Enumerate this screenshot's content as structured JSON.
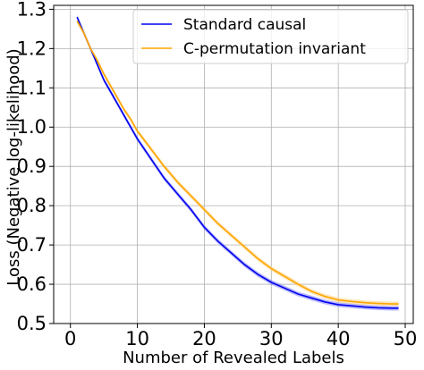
{
  "chart_data": {
    "type": "line",
    "title": "",
    "xlabel": "Number of Revealed Labels",
    "ylabel": "Loss (Negative log-likelihood)",
    "xlim": [
      -2.5,
      51.2
    ],
    "ylim": [
      0.5,
      1.31
    ],
    "xticks": [
      0,
      10,
      20,
      30,
      40,
      50
    ],
    "yticks": [
      0.5,
      0.6,
      0.7,
      0.8,
      0.9,
      1.0,
      1.1,
      1.2,
      1.3
    ],
    "xtick_labels": [
      "0",
      "10",
      "20",
      "30",
      "40",
      "50"
    ],
    "ytick_labels": [
      "0.5",
      "0.6",
      "0.7",
      "0.8",
      "0.9",
      "1.0",
      "1.1",
      "1.2",
      "1.3"
    ],
    "grid": true,
    "legend_position": "top-right",
    "series": [
      {
        "name": "Standard causal",
        "color": "#0000ee",
        "band_color": "#8080ff",
        "x": [
          1,
          2,
          3,
          4,
          5,
          6,
          7,
          8,
          9,
          10,
          12,
          14,
          16,
          18,
          20,
          22,
          24,
          26,
          28,
          30,
          32,
          34,
          36,
          38,
          40,
          42,
          44,
          46,
          48,
          49
        ],
        "y": [
          1.28,
          1.24,
          1.2,
          1.16,
          1.12,
          1.09,
          1.06,
          1.03,
          1.0,
          0.97,
          0.92,
          0.87,
          0.83,
          0.79,
          0.745,
          0.71,
          0.68,
          0.65,
          0.625,
          0.605,
          0.59,
          0.575,
          0.565,
          0.555,
          0.548,
          0.545,
          0.542,
          0.54,
          0.539,
          0.539
        ],
        "band": 0.006
      },
      {
        "name": "C-permutation invariant",
        "color": "#ffa500",
        "band_color": "#ffd27f",
        "x": [
          1,
          2,
          3,
          4,
          5,
          6,
          7,
          8,
          9,
          10,
          12,
          14,
          16,
          18,
          20,
          22,
          24,
          26,
          28,
          30,
          32,
          34,
          36,
          38,
          40,
          42,
          44,
          46,
          48,
          49
        ],
        "y": [
          1.27,
          1.24,
          1.2,
          1.17,
          1.135,
          1.105,
          1.075,
          1.045,
          1.02,
          0.99,
          0.945,
          0.9,
          0.86,
          0.825,
          0.79,
          0.755,
          0.725,
          0.695,
          0.665,
          0.64,
          0.62,
          0.6,
          0.582,
          0.569,
          0.56,
          0.556,
          0.553,
          0.551,
          0.55,
          0.55
        ],
        "band": 0.006
      }
    ]
  }
}
